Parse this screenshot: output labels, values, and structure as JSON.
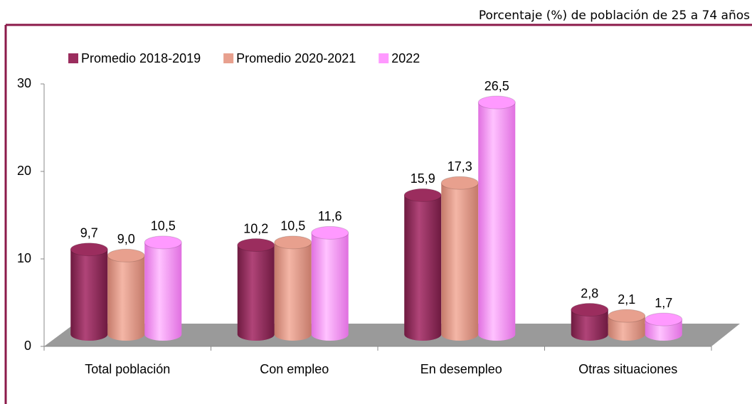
{
  "chart_data": {
    "type": "bar3d",
    "subtitle": "Porcentaje (%) de población de 25 a 74 años",
    "categories": [
      "Total población",
      "Con empleo",
      "En desempleo",
      "Otras situaciones"
    ],
    "series": [
      {
        "name": "Promedio 2018-2019",
        "color": "#9b2d5e",
        "values": [
          9.7,
          10.2,
          15.9,
          2.8
        ],
        "value_labels": [
          "9,7",
          "10,2",
          "15,9",
          "2,8"
        ]
      },
      {
        "name": "Promedio 2020-2021",
        "color": "#e8a08e",
        "values": [
          9.0,
          10.5,
          17.3,
          2.1
        ],
        "value_labels": [
          "9,0",
          "10,5",
          "17,3",
          "2,1"
        ]
      },
      {
        "name": "2022",
        "color": "#ff99ff",
        "values": [
          10.5,
          11.6,
          26.5,
          1.7
        ],
        "value_labels": [
          "10,5",
          "11,6",
          "26,5",
          "1,7"
        ]
      }
    ],
    "ylim": [
      0,
      30
    ],
    "yticks": [
      0,
      10,
      20,
      30
    ],
    "grid": false,
    "legend": "top"
  }
}
